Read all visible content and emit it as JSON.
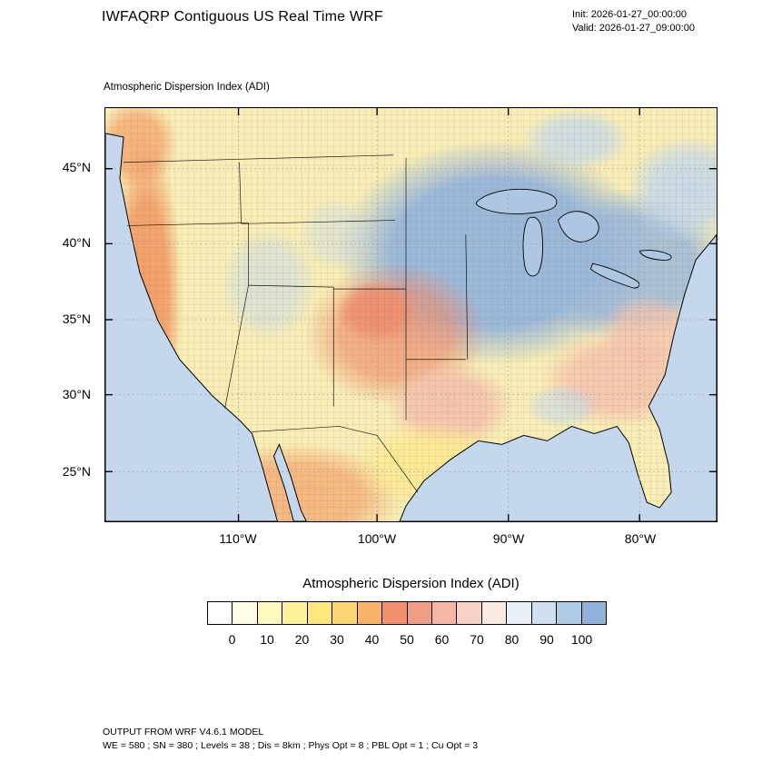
{
  "header": {
    "title": "IWFAQRP Contiguous US Real Time WRF",
    "init": "Init: 2026-01-27_00:00:00",
    "valid": "Valid: 2026-01-27_09:00:00"
  },
  "map": {
    "field_label": "Atmospheric Dispersion Index   (ADI)",
    "lat_ticks": [
      "45°N",
      "40°N",
      "35°N",
      "30°N",
      "25°N"
    ],
    "lon_ticks": [
      "110°W",
      "100°W",
      "90°W",
      "80°W"
    ]
  },
  "colorbar": {
    "title": "Atmospheric Dispersion Index  (ADI)",
    "ticks": [
      "0",
      "10",
      "20",
      "30",
      "40",
      "50",
      "60",
      "70",
      "80",
      "90",
      "100"
    ],
    "colors": [
      "#ffffff",
      "#fffde3",
      "#fff9c0",
      "#fff29b",
      "#ffe77d",
      "#fdd46e",
      "#f8b269",
      "#f0906c",
      "#ef9d85",
      "#f3b7a3",
      "#f7d2c4",
      "#fbe9e3",
      "#e9f0f8",
      "#cfe1f1",
      "#afcce7",
      "#8fb3d9"
    ]
  },
  "footer": {
    "line1": "OUTPUT FROM WRF V4.6.1 MODEL",
    "line2": "WE = 580 ; SN = 380 ; Levels = 38 ; Dis = 8km ; Phys Opt = 8 ; PBL Opt = 1 ; Cu Opt = 3"
  }
}
